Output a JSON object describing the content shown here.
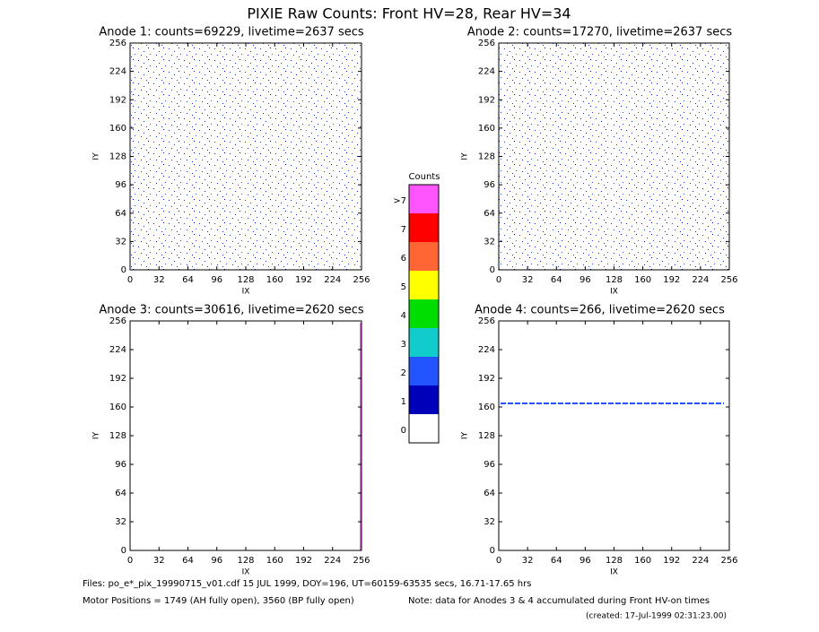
{
  "title": "PIXIE Raw Counts:  Front HV=28, Rear HV=34",
  "panels": [
    {
      "title": "Anode 1: counts=69229, livetime=2637 secs",
      "xlabel": "IX",
      "ylabel": "IY",
      "xlim": [
        0,
        256
      ],
      "ylim": [
        0,
        256
      ],
      "xticks": [
        0,
        32,
        64,
        96,
        128,
        160,
        192,
        224,
        256
      ],
      "yticks": [
        0,
        32,
        64,
        96,
        128,
        160,
        192,
        224,
        256
      ]
    },
    {
      "title": "Anode 2: counts=17270, livetime=2637 secs",
      "xlabel": "IX",
      "ylabel": "IY",
      "xlim": [
        0,
        256
      ],
      "ylim": [
        0,
        256
      ],
      "xticks": [
        0,
        32,
        64,
        96,
        128,
        160,
        192,
        224,
        256
      ],
      "yticks": [
        0,
        32,
        64,
        96,
        128,
        160,
        192,
        224,
        256
      ]
    },
    {
      "title": "Anode 3: counts=30616, livetime=2620 secs",
      "xlabel": "IX",
      "ylabel": "IY",
      "xlim": [
        0,
        256
      ],
      "ylim": [
        0,
        256
      ],
      "xticks": [
        0,
        32,
        64,
        96,
        128,
        160,
        192,
        224,
        256
      ],
      "yticks": [
        0,
        32,
        64,
        96,
        128,
        160,
        192,
        224,
        256
      ]
    },
    {
      "title": "Anode 4: counts=266, livetime=2620 secs",
      "xlabel": "IX",
      "ylabel": "IY",
      "xlim": [
        0,
        256
      ],
      "ylim": [
        0,
        256
      ],
      "xticks": [
        0,
        32,
        64,
        96,
        128,
        160,
        192,
        224,
        256
      ],
      "yticks": [
        0,
        32,
        64,
        96,
        128,
        160,
        192,
        224,
        256
      ]
    }
  ],
  "colorbar": {
    "title": "Counts",
    "labels": [
      ">7",
      "7",
      "6",
      "5",
      "4",
      "3",
      "2",
      "1",
      "0"
    ],
    "colors": [
      "#ff55ff",
      "#ff0000",
      "#ff6633",
      "#ffff00",
      "#00dd00",
      "#11cccc",
      "#2255ff",
      "#0000bb",
      "#ffffff"
    ]
  },
  "footer": {
    "files": "Files: po_e*_pix_19990715_v01.cdf    15 JUL 1999, DOY=196, UT=60159-63535 secs, 16.71-17.65 hrs",
    "motor": "Motor Positions = 1749 (AH fully open), 3560 (BP fully open)",
    "note": "Note: data for Anodes 3 & 4 accumulated during Front HV-on times",
    "created": "(created: 17-Jul-1999 02:31:23.00)"
  }
}
